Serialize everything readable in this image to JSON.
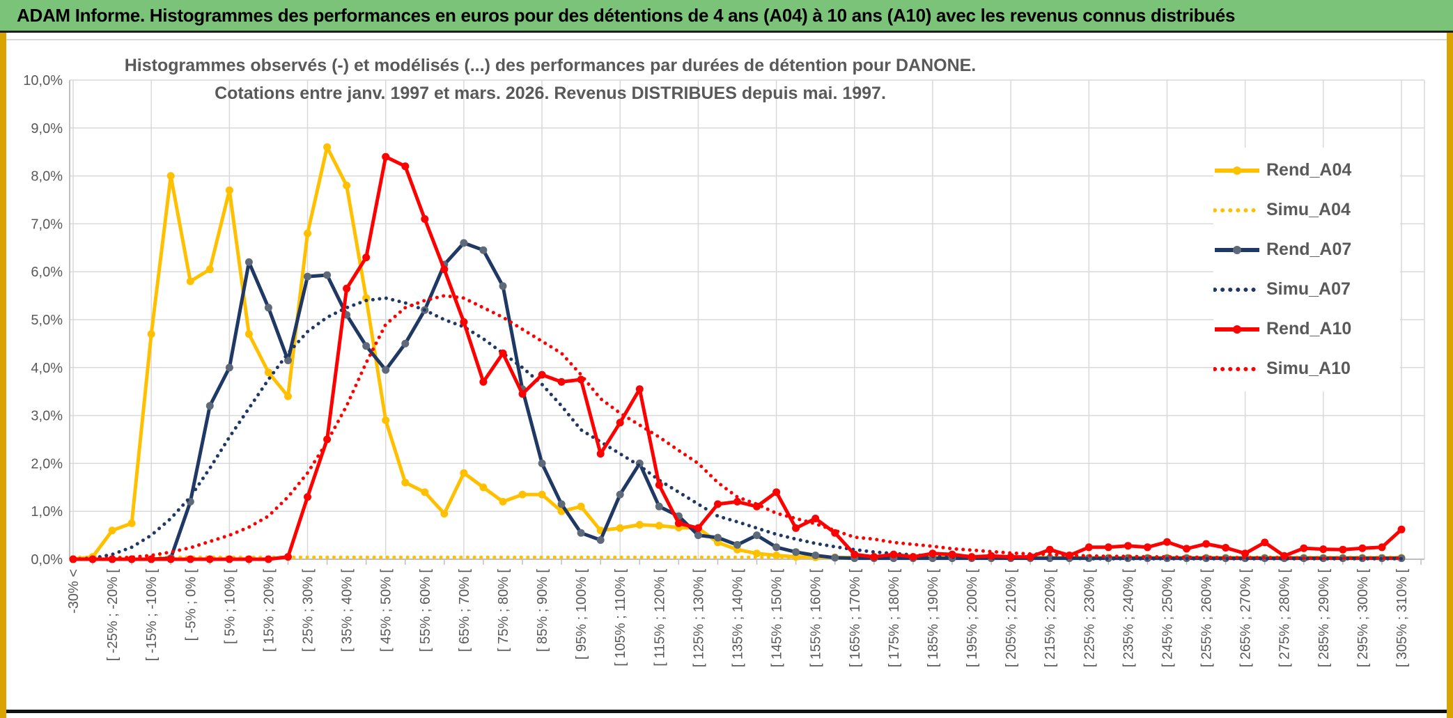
{
  "banner": {
    "title": "ADAM Informe. Histogrammes des performances en euros pour des détentions de 4 ans (A04) à 10 ans (A10) avec les revenus connus distribués"
  },
  "chart": {
    "title_line1": "Histogrammes observés (-) et modélisés (...) des performances par durées de détention pour DANONE.",
    "title_line2": "Cotations entre janv. 1997 et mars. 2026. Revenus DISTRIBUES depuis mai. 1997."
  },
  "colors": {
    "gold": "#FFC000",
    "navy": "#1F3864",
    "red": "#FF0000",
    "navy_marker": "#5E6A7A",
    "grid": "#D9D9D9",
    "axis": "#BFBFBF",
    "text": "#595959",
    "banner_green": "#7CC37A",
    "frame_gold": "#D9A400"
  },
  "chart_data": {
    "type": "line",
    "title": "Histogrammes observés (-) et modélisés (...) des performances par durées de détention pour DANONE. Cotations entre janv. 1997 et mars. 2026. Revenus DISTRIBUES depuis mai. 1997.",
    "xlabel": "",
    "ylabel": "",
    "ylim": [
      0,
      10
    ],
    "y_tick_labels": [
      "0,0%",
      "1,0%",
      "2,0%",
      "3,0%",
      "4,0%",
      "5,0%",
      "6,0%",
      "7,0%",
      "8,0%",
      "9,0%",
      "10,0%"
    ],
    "grid": true,
    "legend_position": "right",
    "n_bins": 69,
    "x_labels_every_other_bin": true,
    "x_tick_labels": [
      "-30% <",
      "[ -25% ; -20% [",
      "[ -15% ; -10% [",
      "[ -5% ; 0% [",
      "[ 5% ; 10% [",
      "[ 15% ; 20% [",
      "[ 25% ; 30% [",
      "[ 35% ; 40% [",
      "[ 45% ; 50% [",
      "[ 55% ; 60% [",
      "[ 65% ; 70% [",
      "[ 75% ; 80% [",
      "[ 85% ; 90% [",
      "[ 95% ; 100% [",
      "[ 105% ; 110% [",
      "[ 115% ; 120% [",
      "[ 125% ; 130% [",
      "[ 135% ; 140% [",
      "[ 145% ; 150% [",
      "[ 155% ; 160% [",
      "[ 165% ; 170% [",
      "[ 175% ; 180% [",
      "[ 185% ; 190% [",
      "[ 195% ; 200% [",
      "[ 205% ; 210% [",
      "[ 215% ; 220% [",
      "[ 225% ; 230% [",
      "[ 235% ; 240% [",
      "[ 245% ; 250% [",
      "[ 255% ; 260% [",
      "[ 265% ; 270% [",
      "[ 275% ; 280% [",
      "[ 285% ; 290% [",
      "[ 295% ; 300% [",
      "[ 305% ; 310% ["
    ],
    "series": [
      {
        "name": "Rend_A04",
        "color": "#FFC000",
        "marker_color": "#FFC000",
        "style": "solid",
        "markers": true,
        "values": [
          0,
          0.05,
          0.6,
          0.75,
          4.7,
          8,
          5.8,
          6.05,
          7.7,
          4.7,
          3.9,
          3.4,
          6.8,
          8.6,
          7.8,
          5.45,
          2.9,
          1.6,
          1.4,
          0.95,
          1.8,
          1.5,
          1.2,
          1.35,
          1.35,
          1,
          1.1,
          0.6,
          0.65,
          0.72,
          0.7,
          0.66,
          0.65,
          0.35,
          0.2,
          0.12,
          0.08,
          0.05,
          0.04,
          0.04,
          0.03,
          0.03,
          0.03,
          0.03,
          0.03,
          0.03,
          0.03,
          0.03,
          0.03,
          0.03,
          0.03,
          0.03,
          0.03,
          0.03,
          0.03,
          0.03,
          0.03,
          0.03,
          0.03,
          0.03,
          0.03,
          0.03,
          0.03,
          0.03,
          0.03,
          0.03,
          0.03,
          0.03,
          0.03
        ]
      },
      {
        "name": "Simu_A04",
        "color": "#FFC000",
        "marker_color": "#FFC000",
        "style": "dotted",
        "markers": false,
        "values": [
          0.04,
          0.04,
          0.04,
          0.04,
          0.04,
          0.04,
          0.04,
          0.04,
          0.04,
          0.04,
          0.04,
          0.04,
          0.04,
          0.04,
          0.04,
          0.04,
          0.04,
          0.04,
          0.04,
          0.04,
          0.04,
          0.04,
          0.04,
          0.04,
          0.04,
          0.04,
          0.04,
          0.04,
          0.04,
          0.04,
          0.04,
          0.04,
          0.04,
          0.04,
          0.04,
          0.04,
          0.04,
          0.04,
          0.04,
          0.04,
          0.04,
          0.04,
          0.04,
          0.04,
          0.04,
          0.04,
          0.04,
          0.04,
          0.04,
          0.04,
          0.04,
          0.04,
          0.04,
          0.04,
          0.04,
          0.04,
          0.04,
          0.04,
          0.04,
          0.04,
          0.04,
          0.04,
          0.04,
          0.04,
          0.04,
          0.04,
          0.04,
          0.04,
          0.04
        ]
      },
      {
        "name": "Rend_A07",
        "color": "#1F3864",
        "marker_color": "#5E6A7A",
        "style": "solid",
        "markers": true,
        "values": [
          0,
          0,
          0,
          0,
          0,
          0.02,
          1.2,
          3.2,
          4,
          6.2,
          5.25,
          4.15,
          5.9,
          5.93,
          5.1,
          4.45,
          3.95,
          4.5,
          5.2,
          6.15,
          6.6,
          6.45,
          5.7,
          3.55,
          2,
          1.15,
          0.55,
          0.4,
          1.35,
          2,
          1.1,
          0.9,
          0.5,
          0.45,
          0.3,
          0.5,
          0.25,
          0.15,
          0.08,
          0.03,
          0.02,
          0.02,
          0.02,
          0.02,
          0.02,
          0.02,
          0.02,
          0.02,
          0.02,
          0.02,
          0.02,
          0.02,
          0.02,
          0.02,
          0.02,
          0.02,
          0.02,
          0.02,
          0.02,
          0.02,
          0.02,
          0.02,
          0.02,
          0.02,
          0.02,
          0.02,
          0.02,
          0.02,
          0.02
        ]
      },
      {
        "name": "Simu_A07",
        "color": "#1F3864",
        "marker_color": "#1F3864",
        "style": "dotted",
        "markers": false,
        "values": [
          0,
          0.02,
          0.1,
          0.25,
          0.5,
          0.85,
          1.3,
          1.9,
          2.55,
          3.15,
          3.75,
          4.3,
          4.75,
          5.05,
          5.25,
          5.4,
          5.45,
          5.35,
          5.2,
          5,
          4.85,
          4.6,
          4.3,
          4,
          3.65,
          3.2,
          2.7,
          2.45,
          2.2,
          1.95,
          1.65,
          1.4,
          1.15,
          0.9,
          0.78,
          0.65,
          0.52,
          0.42,
          0.33,
          0.26,
          0.2,
          0.15,
          0.12,
          0.09,
          0.06,
          0.04,
          0.03,
          0.02,
          0.02,
          0.02,
          0.02,
          0.02,
          0.01,
          0.01,
          0.01,
          0.01,
          0.01,
          0.01,
          0.01,
          0.01,
          0.01,
          0.01,
          0.01,
          0.01,
          0.01,
          0.01,
          0.01,
          0.01,
          0.01
        ]
      },
      {
        "name": "Rend_A10",
        "color": "#FF0000",
        "marker_color": "#FF0000",
        "style": "solid",
        "markers": true,
        "values": [
          0,
          0,
          0,
          0,
          0,
          0,
          0,
          0,
          0,
          0,
          0,
          0.05,
          1.3,
          2.5,
          5.65,
          6.3,
          8.4,
          8.2,
          7.1,
          6.05,
          4.95,
          3.7,
          4.3,
          3.45,
          3.85,
          3.7,
          3.75,
          2.2,
          2.85,
          3.55,
          1.55,
          0.75,
          0.65,
          1.15,
          1.2,
          1.1,
          1.4,
          0.65,
          0.85,
          0.55,
          0.1,
          0.05,
          0.1,
          0.05,
          0.12,
          0.1,
          0.05,
          0.07,
          0.05,
          0.05,
          0.2,
          0.08,
          0.25,
          0.25,
          0.28,
          0.25,
          0.36,
          0.22,
          0.32,
          0.24,
          0.12,
          0.35,
          0.07,
          0.23,
          0.21,
          0.2,
          0.23,
          0.25,
          0.62
        ]
      },
      {
        "name": "Simu_A10",
        "color": "#FF0000",
        "marker_color": "#FF0000",
        "style": "dotted",
        "markers": false,
        "values": [
          0,
          0,
          0.02,
          0.04,
          0.08,
          0.15,
          0.24,
          0.37,
          0.5,
          0.67,
          0.9,
          1.3,
          1.8,
          2.45,
          3.2,
          4.1,
          4.9,
          5.25,
          5.4,
          5.5,
          5.45,
          5.25,
          5.05,
          4.8,
          4.55,
          4.3,
          3.85,
          3.35,
          3.05,
          2.8,
          2.55,
          2.27,
          2,
          1.6,
          1.3,
          1.15,
          0.96,
          0.85,
          0.74,
          0.6,
          0.46,
          0.42,
          0.35,
          0.31,
          0.27,
          0.22,
          0.19,
          0.16,
          0.13,
          0.11,
          0.1,
          0.08,
          0.07,
          0.06,
          0.06,
          0.05,
          0.05,
          0.04,
          0.04,
          0.03,
          0.03,
          0.03,
          0.03,
          0.02,
          0.02,
          0.02,
          0.02,
          0.02,
          0.02
        ]
      }
    ]
  }
}
